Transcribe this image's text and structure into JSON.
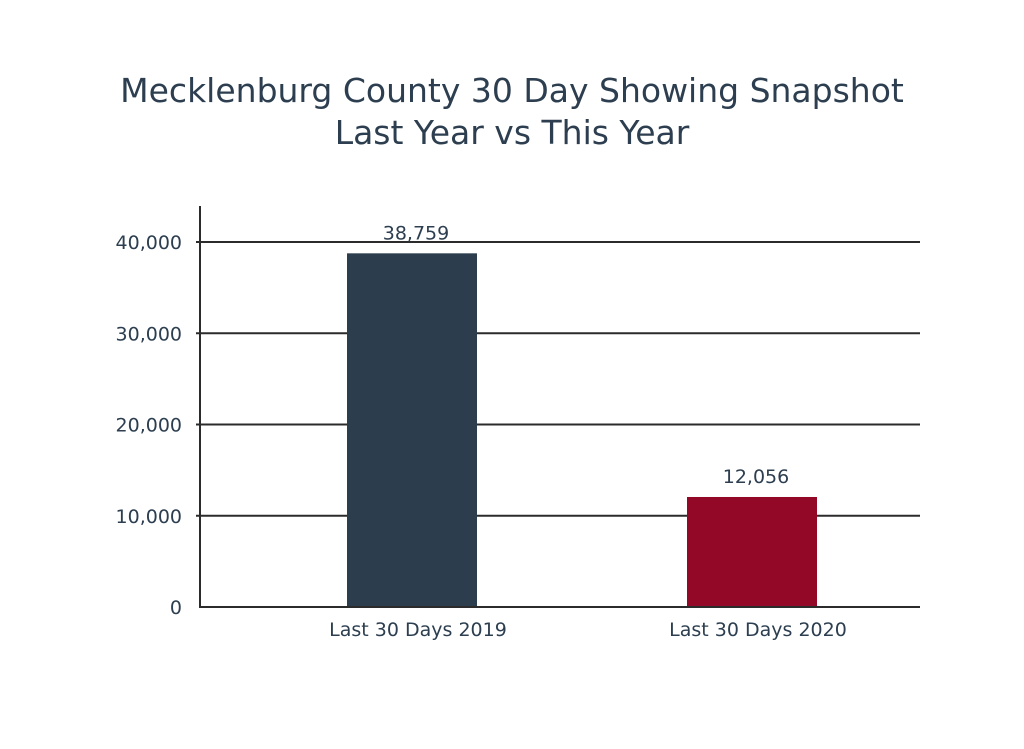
{
  "chart_data": {
    "type": "bar",
    "title": "Mecklenburg County 30 Day Showing Snapshot",
    "subtitle": "Last Year vs This Year",
    "xlabel": "",
    "ylabel": "",
    "categories": [
      "Last 30 Days 2019",
      "Last 30 Days 2020"
    ],
    "values": [
      38759,
      12056
    ],
    "data_labels": [
      "38,759",
      "12,056"
    ],
    "bar_colors": [
      "#2c3d4d",
      "#940827"
    ],
    "ylim": [
      0,
      40000
    ],
    "y_ticks": [
      0,
      10000,
      20000,
      30000,
      40000
    ],
    "y_tick_labels": [
      "0",
      "10,000",
      "20,000",
      "30,000",
      "40,000"
    ],
    "grid": true,
    "legend": "none"
  }
}
